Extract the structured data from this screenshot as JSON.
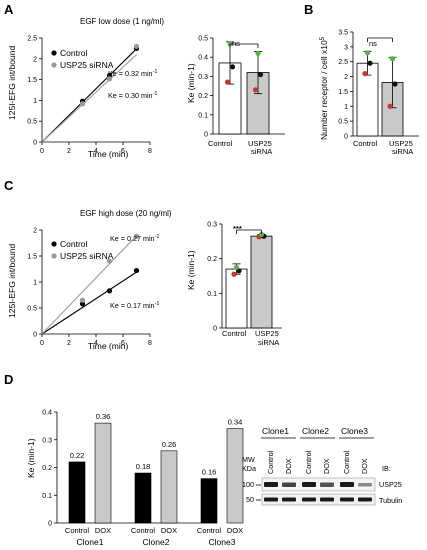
{
  "colors": {
    "control": "#000000",
    "usp25": "#9a9a9a",
    "bar_gray": "#c9c9c9",
    "dot_red": "#c0392b",
    "dot_green": "#58b44a",
    "dot_black": "#111111"
  },
  "panels": {
    "A": {
      "letter": "A",
      "line": {
        "title": "EGF low dose (1 ng/ml)",
        "xlabel": "Time (min)",
        "ylabel": "125I-EFG int/bound",
        "legend": [
          "Control",
          "USP25 siRNA"
        ],
        "ke_control": "Ke = 0.32 min",
        "ke_usp25": "Ke = 0.30 min",
        "superscript": "-1"
      },
      "bar": {
        "ylabel": "Ke (min-1)",
        "sig": "ns",
        "categories": [
          "Control",
          "USP25",
          "siRNA"
        ]
      }
    },
    "B": {
      "letter": "B",
      "bar": {
        "ylabel": "Number receptor / cell x10",
        "ylabel_sup": "5",
        "sig": "ns",
        "categories": [
          "Control",
          "USP25",
          "siRNA"
        ]
      }
    },
    "C": {
      "letter": "C",
      "line": {
        "title": "EGF high dose (20 ng/ml)",
        "xlabel": "Time (min)",
        "ylabel": "125I-EFG int/bound",
        "legend": [
          "Control",
          "USP25 siRNA"
        ],
        "ke_usp25": "Ke = 0.27 min",
        "ke_control": "Ke = 0.17 min",
        "superscript": "-1"
      },
      "bar": {
        "ylabel": "Ke (min-1)",
        "sig": "***",
        "categories": [
          "Control",
          "USP25",
          "siRNA"
        ]
      }
    },
    "D": {
      "letter": "D",
      "bar": {
        "ylabel": "Ke (min-1)"
      },
      "blot": {
        "clones": [
          "Clone1",
          "Clone2",
          "Clone3"
        ],
        "lanes": [
          "Control",
          "DOX",
          "Control",
          "DOX",
          "Control",
          "DOX"
        ],
        "mw_label": "MW",
        "kda_label": "KDa",
        "ib_label": "IB:",
        "markers": [
          "100",
          "50"
        ],
        "proteins": [
          "USP25",
          "Tubulin"
        ]
      }
    }
  },
  "chart_data": [
    {
      "id": "A-line",
      "type": "scatter",
      "title": "EGF low dose (1 ng/ml)",
      "xlabel": "Time (min)",
      "ylabel": "125I-EFG int/bound",
      "xlim": [
        0,
        8
      ],
      "ylim": [
        0,
        2.5
      ],
      "xticks": [
        0,
        2,
        4,
        6,
        8
      ],
      "yticks": [
        0,
        0.5,
        1,
        1.5,
        2,
        2.5
      ],
      "series": [
        {
          "name": "Control",
          "x": [
            3,
            5,
            7
          ],
          "y": [
            0.98,
            1.6,
            2.25
          ],
          "fit_slope": 0.32
        },
        {
          "name": "USP25 siRNA",
          "x": [
            3,
            5,
            7
          ],
          "y": [
            0.92,
            1.52,
            2.3
          ],
          "fit_slope": 0.3
        }
      ]
    },
    {
      "id": "A-bar",
      "type": "bar",
      "ylabel": "Ke (min-1)",
      "ylim": [
        0,
        0.5
      ],
      "yticks": [
        0,
        0.1,
        0.2,
        0.3,
        0.4,
        0.5
      ],
      "categories": [
        "Control",
        "USP25 siRNA"
      ],
      "values": [
        0.37,
        0.32
      ],
      "errors": [
        0.11,
        0.11
      ],
      "points": [
        [
          0.27,
          0.35,
          0.47
        ],
        [
          0.23,
          0.31,
          0.42
        ]
      ]
    },
    {
      "id": "B-bar",
      "type": "bar",
      "ylabel": "Number receptor / cell x10^5",
      "ylim": [
        0,
        3.5
      ],
      "yticks": [
        0,
        0.5,
        1,
        1.5,
        2,
        2.5,
        3,
        3.5
      ],
      "categories": [
        "Control",
        "USP25 siRNA"
      ],
      "values": [
        2.45,
        1.8
      ],
      "errors": [
        0.4,
        0.85
      ],
      "points": [
        [
          2.1,
          2.45,
          2.8
        ],
        [
          1.0,
          1.75,
          2.6
        ]
      ]
    },
    {
      "id": "C-line",
      "type": "scatter",
      "title": "EGF high dose (20 ng/ml)",
      "xlabel": "Time (min)",
      "ylabel": "125I-EFG int/bound",
      "xlim": [
        0,
        8
      ],
      "ylim": [
        0,
        2
      ],
      "xticks": [
        0,
        2,
        4,
        6,
        8
      ],
      "yticks": [
        0,
        0.5,
        1,
        1.5,
        2
      ],
      "series": [
        {
          "name": "Control",
          "x": [
            3,
            5,
            7
          ],
          "y": [
            0.58,
            0.83,
            1.22
          ],
          "fit_slope": 0.17
        },
        {
          "name": "USP25 siRNA",
          "x": [
            3,
            5,
            7
          ],
          "y": [
            0.65,
            1.4,
            1.88
          ],
          "fit_slope": 0.27
        }
      ]
    },
    {
      "id": "C-bar",
      "type": "bar",
      "ylabel": "Ke (min-1)",
      "ylim": [
        0,
        0.3
      ],
      "yticks": [
        0,
        0.1,
        0.2,
        0.3
      ],
      "categories": [
        "Control",
        "USP25 siRNA"
      ],
      "values": [
        0.17,
        0.265
      ],
      "errors": [
        0.015,
        0.005
      ],
      "points": [
        [
          0.155,
          0.165,
          0.175
        ],
        [
          0.263,
          0.265,
          0.27
        ]
      ]
    },
    {
      "id": "D-bar",
      "type": "bar",
      "ylabel": "Ke (min-1)",
      "ylim": [
        0,
        0.4
      ],
      "yticks": [
        0,
        0.1,
        0.2,
        0.3,
        0.4
      ],
      "groups": [
        "Clone1",
        "Clone2",
        "Clone3"
      ],
      "categories": [
        "Control",
        "DOX",
        "Control",
        "DOX",
        "Control",
        "DOX"
      ],
      "values": [
        0.22,
        0.36,
        0.18,
        0.26,
        0.16,
        0.34
      ],
      "labels": [
        "0.22",
        "0.36",
        "0.18",
        "0.26",
        "0.16",
        "0.34"
      ]
    }
  ]
}
